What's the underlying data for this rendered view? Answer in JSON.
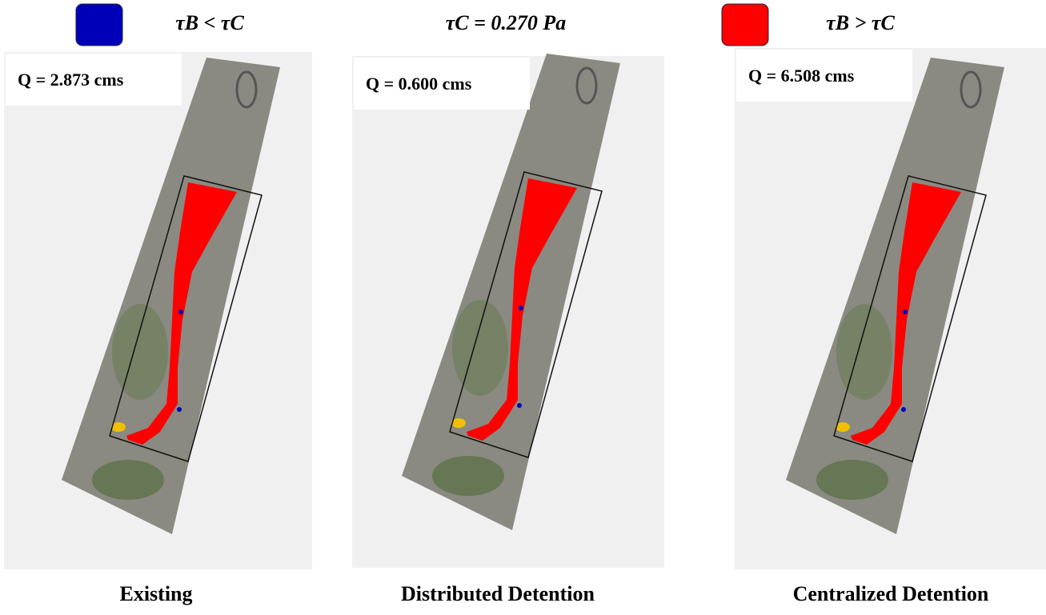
{
  "legend": {
    "below": "τB < τC",
    "threshold": "τC = 0.270 Pa",
    "above": "τB > τC"
  },
  "panels": [
    {
      "q_label": "Q = 2.873 cms",
      "caption": "Existing"
    },
    {
      "q_label": "Q = 0.600 cms",
      "caption": "Distributed Detention"
    },
    {
      "q_label": "Q = 6.508 cms",
      "caption": "Centralized Detention"
    }
  ]
}
